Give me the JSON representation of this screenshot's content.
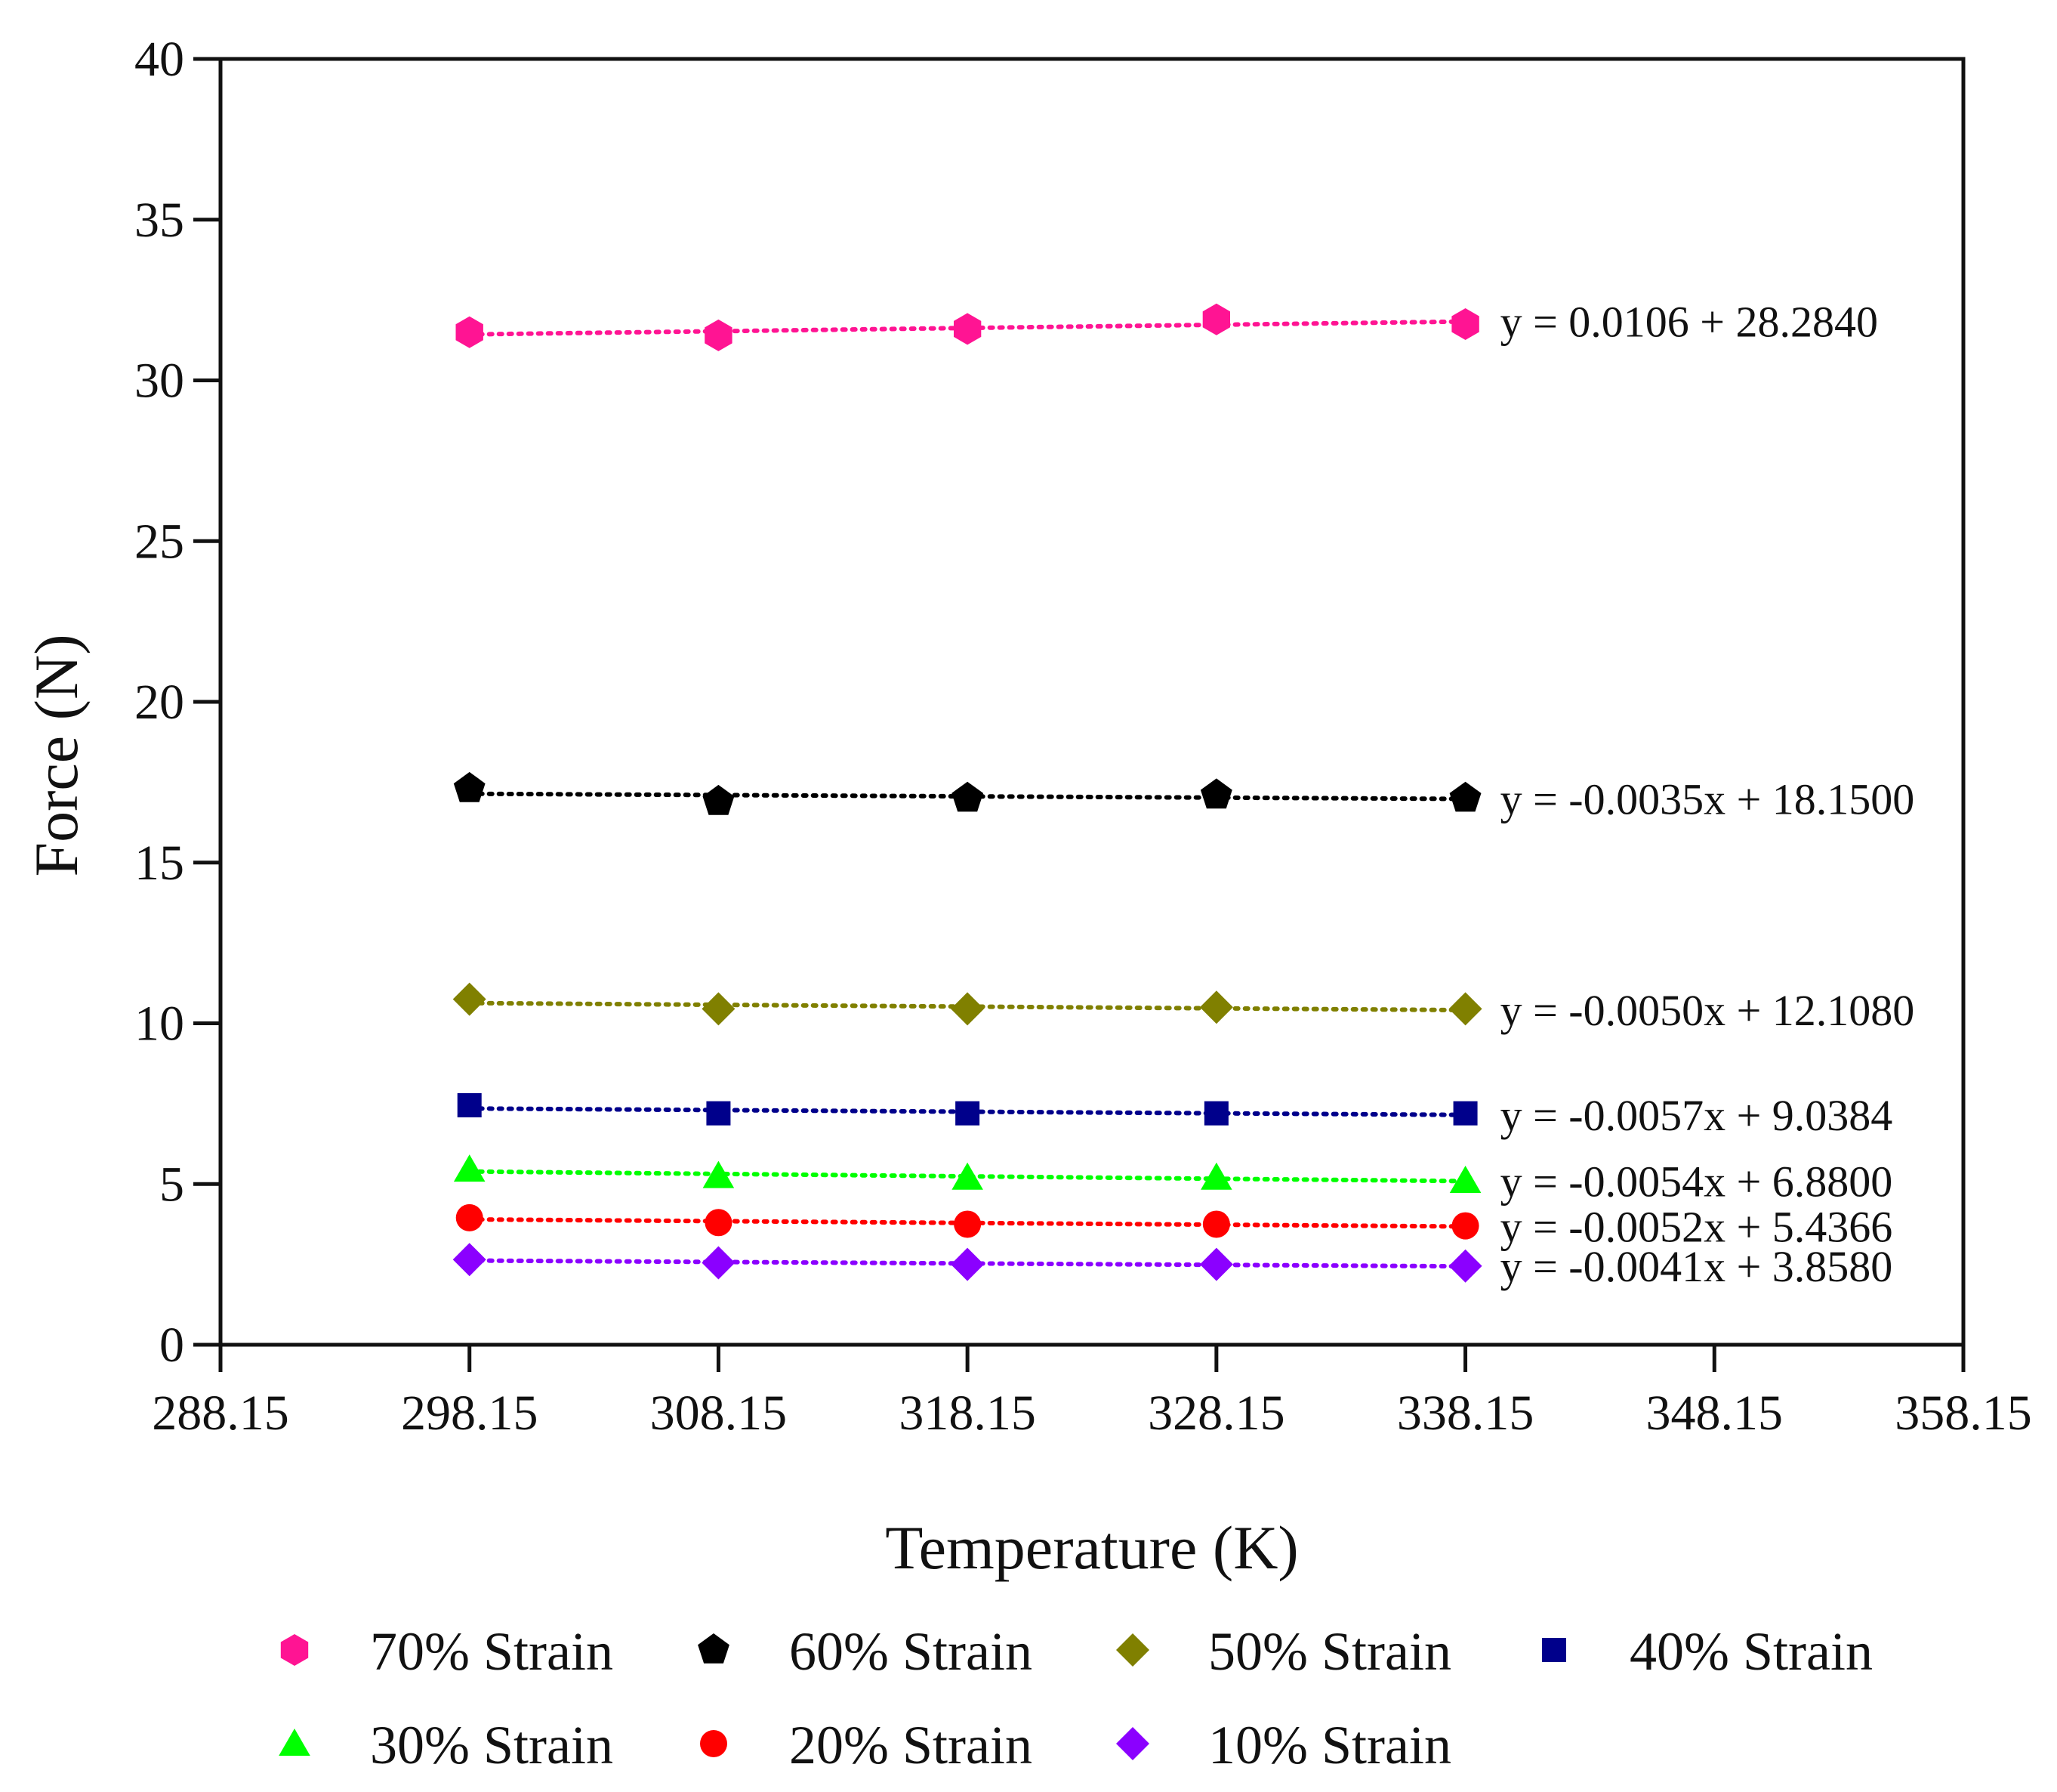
{
  "chart_data": {
    "type": "scatter",
    "title": "",
    "xlabel": "Temperature (K)",
    "ylabel": "Force (N)",
    "xlim": [
      288.15,
      358.15
    ],
    "ylim": [
      0,
      40
    ],
    "x_ticks": [
      "288.15",
      "298.15",
      "308.15",
      "318.15",
      "328.15",
      "338.15",
      "348.15",
      "358.15"
    ],
    "y_ticks": [
      "0",
      "5",
      "10",
      "15",
      "20",
      "25",
      "30",
      "35",
      "40"
    ],
    "grid": false,
    "legend_position": "bottom",
    "x": [
      298.15,
      308.15,
      318.15,
      328.15,
      338.15
    ],
    "series": [
      {
        "name": "70% Strain",
        "color": "#ff1493",
        "marker": "hexagon",
        "values": [
          31.5,
          31.4,
          31.6,
          31.9,
          31.75
        ],
        "trendline": {
          "slope": 0.0106,
          "intercept": 28.284
        },
        "equation": "y = 0.0106 + 28.2840"
      },
      {
        "name": "60% Strain",
        "color": "#000000",
        "marker": "pentagon",
        "values": [
          17.3,
          16.9,
          17.0,
          17.1,
          17.0
        ],
        "trendline": {
          "slope": -0.0035,
          "intercept": 18.15
        },
        "equation": "y = -0.0035x + 18.1500"
      },
      {
        "name": "50% Strain",
        "color": "#808000",
        "marker": "diamond",
        "values": [
          10.75,
          10.45,
          10.45,
          10.5,
          10.45
        ],
        "trendline": {
          "slope": -0.005,
          "intercept": 12.108
        },
        "equation": "y = -0.0050x + 12.1080"
      },
      {
        "name": "40% Strain",
        "color": "#00008b",
        "marker": "square",
        "values": [
          7.45,
          7.2,
          7.2,
          7.2,
          7.2
        ],
        "trendline": {
          "slope": -0.0057,
          "intercept": 9.0384
        },
        "equation": "y = -0.0057x + 9.0384"
      },
      {
        "name": "30% Strain",
        "color": "#00ff00",
        "marker": "triangle",
        "values": [
          5.45,
          5.25,
          5.2,
          5.2,
          5.1
        ],
        "trendline": {
          "slope": -0.0054,
          "intercept": 6.88
        },
        "equation": "y = -0.0054x + 6.8800"
      },
      {
        "name": "20% Strain",
        "color": "#ff0000",
        "marker": "circle",
        "values": [
          3.95,
          3.8,
          3.75,
          3.75,
          3.7
        ],
        "trendline": {
          "slope": -0.0052,
          "intercept": 5.4366
        },
        "equation": "y = -0.0052x + 5.4366"
      },
      {
        "name": "10% Strain",
        "color": "#8b00ff",
        "marker": "diamond",
        "values": [
          2.65,
          2.55,
          2.5,
          2.5,
          2.45
        ],
        "trendline": {
          "slope": -0.0041,
          "intercept": 3.858
        },
        "equation": "y = -0.0041x + 3.8580"
      }
    ]
  }
}
